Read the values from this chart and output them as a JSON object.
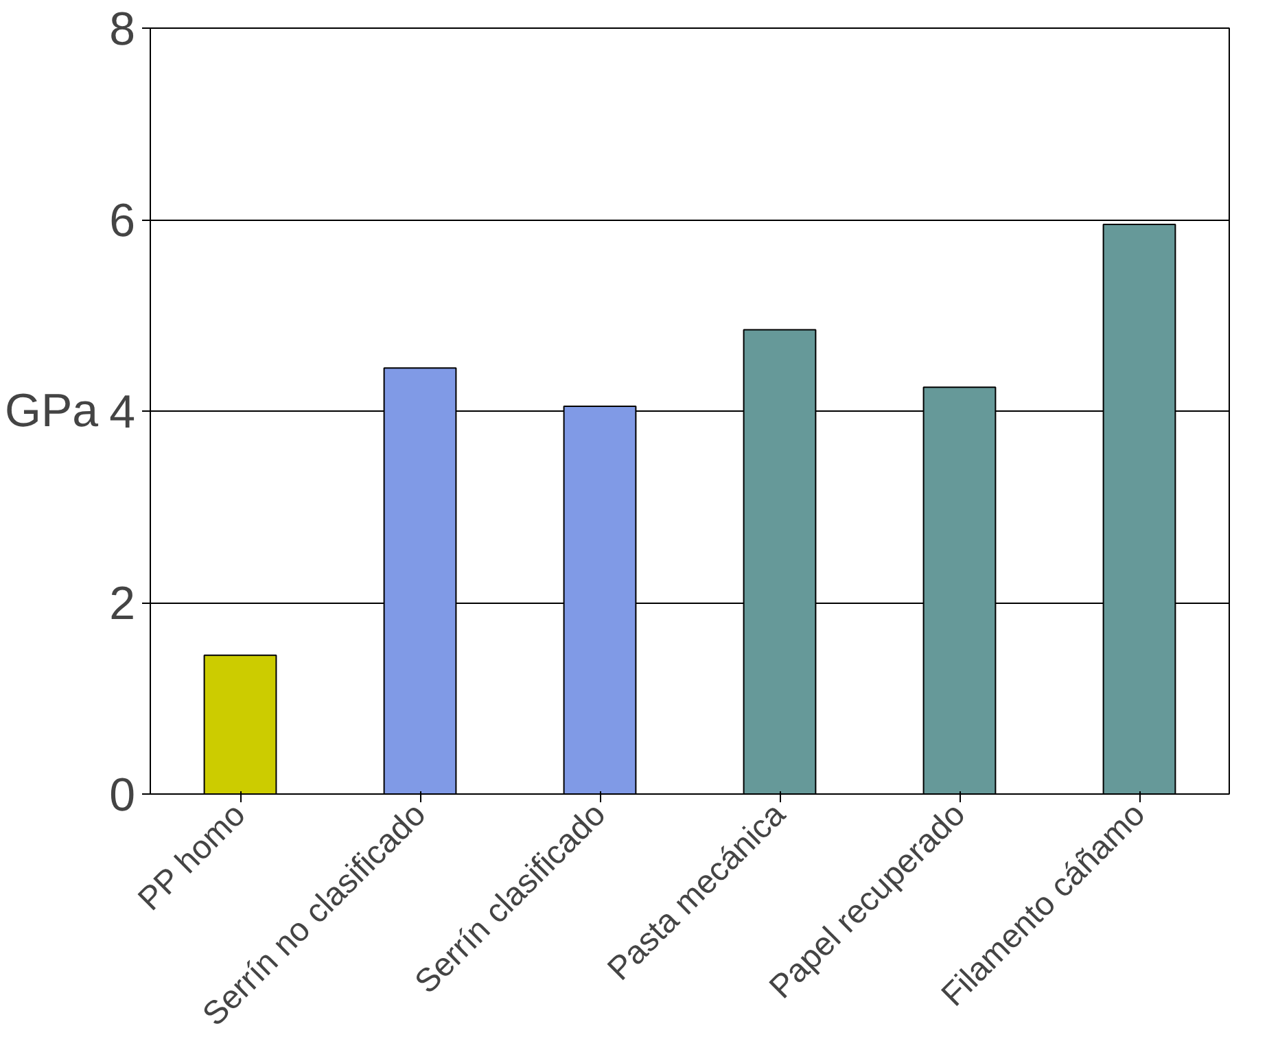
{
  "chart_data": {
    "type": "bar",
    "ylabel": "GPa",
    "categories": [
      "PP homo",
      "Serrín no clasificado",
      "Serrín clasificado",
      "Pasta mecánica",
      "Papel recuperado",
      "Filamento cáñamo"
    ],
    "values": [
      1.45,
      4.45,
      4.05,
      4.85,
      4.25,
      5.95
    ],
    "colors": [
      "#cccc00",
      "#809ae6",
      "#809ae6",
      "#669999",
      "#669999",
      "#669999"
    ],
    "ylim": [
      0,
      8
    ],
    "yticks": [
      0,
      2,
      4,
      6,
      8
    ],
    "grid": "y"
  }
}
